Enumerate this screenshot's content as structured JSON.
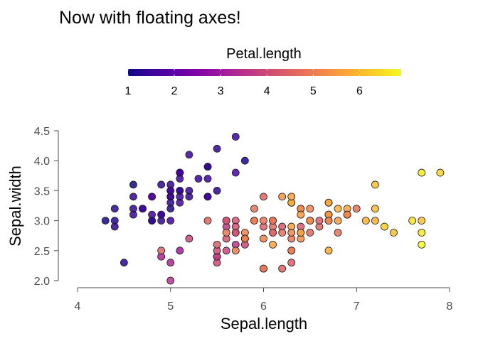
{
  "chart_data": {
    "type": "scatter",
    "title": "Now with floating axes!",
    "xlabel": "Sepal.length",
    "ylabel": "Sepal.width",
    "xlim": [
      4,
      8
    ],
    "ylim": [
      2.0,
      4.5
    ],
    "xticks": [
      "4",
      "5",
      "6",
      "7",
      "8"
    ],
    "yticks": [
      "2.0",
      "2.5",
      "3.0",
      "3.5",
      "4.0",
      "4.5"
    ],
    "grid": false,
    "legend": {
      "title": "Petal.length",
      "position": "top",
      "type": "colorbar",
      "range": [
        1,
        6.9
      ],
      "ticks": [
        "1",
        "2",
        "3",
        "4",
        "5",
        "6"
      ],
      "colormap": "plasma"
    },
    "colors": [
      "#0d0887",
      "#3e049c",
      "#6300a7",
      "#8707a6",
      "#a62098",
      "#c03a83",
      "#d5546e",
      "#e76f5a",
      "#f58c46",
      "#fdad32",
      "#fcd225",
      "#f0f921"
    ],
    "points": [
      {
        "x": 5.1,
        "y": 3.5,
        "c": 1.4
      },
      {
        "x": 4.9,
        "y": 3.0,
        "c": 1.4
      },
      {
        "x": 4.7,
        "y": 3.2,
        "c": 1.3
      },
      {
        "x": 4.6,
        "y": 3.1,
        "c": 1.5
      },
      {
        "x": 5.0,
        "y": 3.6,
        "c": 1.4
      },
      {
        "x": 5.4,
        "y": 3.9,
        "c": 1.7
      },
      {
        "x": 4.6,
        "y": 3.4,
        "c": 1.4
      },
      {
        "x": 5.0,
        "y": 3.4,
        "c": 1.5
      },
      {
        "x": 4.4,
        "y": 2.9,
        "c": 1.4
      },
      {
        "x": 4.9,
        "y": 3.1,
        "c": 1.5
      },
      {
        "x": 5.4,
        "y": 3.7,
        "c": 1.5
      },
      {
        "x": 4.8,
        "y": 3.4,
        "c": 1.6
      },
      {
        "x": 4.8,
        "y": 3.0,
        "c": 1.4
      },
      {
        "x": 4.3,
        "y": 3.0,
        "c": 1.1
      },
      {
        "x": 5.8,
        "y": 4.0,
        "c": 1.2
      },
      {
        "x": 5.7,
        "y": 4.4,
        "c": 1.5
      },
      {
        "x": 5.4,
        "y": 3.9,
        "c": 1.3
      },
      {
        "x": 5.1,
        "y": 3.5,
        "c": 1.4
      },
      {
        "x": 5.7,
        "y": 3.8,
        "c": 1.7
      },
      {
        "x": 5.1,
        "y": 3.8,
        "c": 1.5
      },
      {
        "x": 5.4,
        "y": 3.4,
        "c": 1.7
      },
      {
        "x": 5.1,
        "y": 3.7,
        "c": 1.5
      },
      {
        "x": 4.6,
        "y": 3.6,
        "c": 1.0
      },
      {
        "x": 5.1,
        "y": 3.3,
        "c": 1.7
      },
      {
        "x": 4.8,
        "y": 3.4,
        "c": 1.9
      },
      {
        "x": 5.0,
        "y": 3.0,
        "c": 1.6
      },
      {
        "x": 5.0,
        "y": 3.4,
        "c": 1.6
      },
      {
        "x": 5.2,
        "y": 3.5,
        "c": 1.5
      },
      {
        "x": 5.2,
        "y": 3.4,
        "c": 1.4
      },
      {
        "x": 4.7,
        "y": 3.2,
        "c": 1.6
      },
      {
        "x": 4.8,
        "y": 3.1,
        "c": 1.6
      },
      {
        "x": 5.4,
        "y": 3.4,
        "c": 1.5
      },
      {
        "x": 5.2,
        "y": 4.1,
        "c": 1.5
      },
      {
        "x": 5.5,
        "y": 4.2,
        "c": 1.4
      },
      {
        "x": 4.9,
        "y": 3.1,
        "c": 1.5
      },
      {
        "x": 5.0,
        "y": 3.2,
        "c": 1.2
      },
      {
        "x": 5.5,
        "y": 3.5,
        "c": 1.3
      },
      {
        "x": 4.9,
        "y": 3.6,
        "c": 1.4
      },
      {
        "x": 4.4,
        "y": 3.0,
        "c": 1.3
      },
      {
        "x": 5.1,
        "y": 3.4,
        "c": 1.5
      },
      {
        "x": 5.0,
        "y": 3.5,
        "c": 1.3
      },
      {
        "x": 4.5,
        "y": 2.3,
        "c": 1.3
      },
      {
        "x": 4.4,
        "y": 3.2,
        "c": 1.3
      },
      {
        "x": 5.0,
        "y": 3.5,
        "c": 1.6
      },
      {
        "x": 5.1,
        "y": 3.8,
        "c": 1.9
      },
      {
        "x": 4.8,
        "y": 3.0,
        "c": 1.4
      },
      {
        "x": 5.1,
        "y": 3.8,
        "c": 1.6
      },
      {
        "x": 4.6,
        "y": 3.2,
        "c": 1.4
      },
      {
        "x": 5.3,
        "y": 3.7,
        "c": 1.5
      },
      {
        "x": 5.0,
        "y": 3.3,
        "c": 1.4
      },
      {
        "x": 7.0,
        "y": 3.2,
        "c": 4.7
      },
      {
        "x": 6.4,
        "y": 3.2,
        "c": 4.5
      },
      {
        "x": 6.9,
        "y": 3.1,
        "c": 4.9
      },
      {
        "x": 5.5,
        "y": 2.3,
        "c": 4.0
      },
      {
        "x": 6.5,
        "y": 2.8,
        "c": 4.6
      },
      {
        "x": 5.7,
        "y": 2.8,
        "c": 4.5
      },
      {
        "x": 6.3,
        "y": 3.3,
        "c": 4.7
      },
      {
        "x": 4.9,
        "y": 2.4,
        "c": 3.3
      },
      {
        "x": 6.6,
        "y": 2.9,
        "c": 4.6
      },
      {
        "x": 5.2,
        "y": 2.7,
        "c": 3.9
      },
      {
        "x": 5.0,
        "y": 2.0,
        "c": 3.5
      },
      {
        "x": 5.9,
        "y": 3.0,
        "c": 4.2
      },
      {
        "x": 6.0,
        "y": 2.2,
        "c": 4.0
      },
      {
        "x": 6.1,
        "y": 2.9,
        "c": 4.7
      },
      {
        "x": 5.6,
        "y": 2.9,
        "c": 3.6
      },
      {
        "x": 6.7,
        "y": 3.1,
        "c": 4.4
      },
      {
        "x": 5.6,
        "y": 3.0,
        "c": 4.5
      },
      {
        "x": 5.8,
        "y": 2.7,
        "c": 4.1
      },
      {
        "x": 6.2,
        "y": 2.2,
        "c": 4.5
      },
      {
        "x": 5.6,
        "y": 2.5,
        "c": 3.9
      },
      {
        "x": 5.9,
        "y": 3.2,
        "c": 4.8
      },
      {
        "x": 6.1,
        "y": 2.8,
        "c": 4.0
      },
      {
        "x": 6.3,
        "y": 2.5,
        "c": 4.9
      },
      {
        "x": 6.1,
        "y": 2.8,
        "c": 4.7
      },
      {
        "x": 6.4,
        "y": 2.9,
        "c": 4.3
      },
      {
        "x": 6.6,
        "y": 3.0,
        "c": 4.4
      },
      {
        "x": 6.8,
        "y": 2.8,
        "c": 4.8
      },
      {
        "x": 6.7,
        "y": 3.0,
        "c": 5.0
      },
      {
        "x": 6.0,
        "y": 2.9,
        "c": 4.5
      },
      {
        "x": 5.7,
        "y": 2.6,
        "c": 3.5
      },
      {
        "x": 5.5,
        "y": 2.4,
        "c": 3.8
      },
      {
        "x": 5.5,
        "y": 2.4,
        "c": 3.7
      },
      {
        "x": 5.8,
        "y": 2.7,
        "c": 3.9
      },
      {
        "x": 6.0,
        "y": 2.7,
        "c": 5.1
      },
      {
        "x": 5.4,
        "y": 3.0,
        "c": 4.5
      },
      {
        "x": 6.0,
        "y": 3.4,
        "c": 4.5
      },
      {
        "x": 6.7,
        "y": 3.1,
        "c": 4.7
      },
      {
        "x": 6.3,
        "y": 2.3,
        "c": 4.4
      },
      {
        "x": 5.6,
        "y": 3.0,
        "c": 4.1
      },
      {
        "x": 5.5,
        "y": 2.5,
        "c": 4.0
      },
      {
        "x": 5.5,
        "y": 2.6,
        "c": 4.4
      },
      {
        "x": 6.1,
        "y": 3.0,
        "c": 4.6
      },
      {
        "x": 5.8,
        "y": 2.6,
        "c": 4.0
      },
      {
        "x": 5.0,
        "y": 2.3,
        "c": 3.3
      },
      {
        "x": 5.6,
        "y": 2.7,
        "c": 4.2
      },
      {
        "x": 5.7,
        "y": 3.0,
        "c": 4.2
      },
      {
        "x": 5.7,
        "y": 2.9,
        "c": 4.2
      },
      {
        "x": 6.2,
        "y": 2.9,
        "c": 4.3
      },
      {
        "x": 5.1,
        "y": 2.5,
        "c": 3.0
      },
      {
        "x": 5.7,
        "y": 2.8,
        "c": 4.1
      },
      {
        "x": 6.3,
        "y": 3.3,
        "c": 6.0
      },
      {
        "x": 5.8,
        "y": 2.7,
        "c": 5.1
      },
      {
        "x": 7.1,
        "y": 3.0,
        "c": 5.9
      },
      {
        "x": 6.3,
        "y": 2.9,
        "c": 5.6
      },
      {
        "x": 6.5,
        "y": 3.0,
        "c": 5.8
      },
      {
        "x": 7.6,
        "y": 3.0,
        "c": 6.6
      },
      {
        "x": 4.9,
        "y": 2.5,
        "c": 4.5
      },
      {
        "x": 7.3,
        "y": 2.9,
        "c": 6.3
      },
      {
        "x": 6.7,
        "y": 2.5,
        "c": 5.8
      },
      {
        "x": 7.2,
        "y": 3.6,
        "c": 6.1
      },
      {
        "x": 6.5,
        "y": 3.2,
        "c": 5.1
      },
      {
        "x": 6.4,
        "y": 2.7,
        "c": 5.3
      },
      {
        "x": 6.8,
        "y": 3.0,
        "c": 5.5
      },
      {
        "x": 5.7,
        "y": 2.5,
        "c": 5.0
      },
      {
        "x": 5.8,
        "y": 2.8,
        "c": 5.1
      },
      {
        "x": 6.4,
        "y": 3.2,
        "c": 5.3
      },
      {
        "x": 6.5,
        "y": 3.0,
        "c": 5.5
      },
      {
        "x": 7.7,
        "y": 3.8,
        "c": 6.7
      },
      {
        "x": 7.7,
        "y": 2.6,
        "c": 6.9
      },
      {
        "x": 6.0,
        "y": 2.2,
        "c": 5.0
      },
      {
        "x": 6.9,
        "y": 3.2,
        "c": 5.7
      },
      {
        "x": 5.6,
        "y": 2.8,
        "c": 4.9
      },
      {
        "x": 7.7,
        "y": 2.8,
        "c": 6.7
      },
      {
        "x": 6.3,
        "y": 2.7,
        "c": 4.9
      },
      {
        "x": 6.7,
        "y": 3.3,
        "c": 5.7
      },
      {
        "x": 7.2,
        "y": 3.2,
        "c": 6.0
      },
      {
        "x": 6.2,
        "y": 2.8,
        "c": 4.8
      },
      {
        "x": 6.1,
        "y": 3.0,
        "c": 4.9
      },
      {
        "x": 6.4,
        "y": 2.8,
        "c": 5.6
      },
      {
        "x": 7.2,
        "y": 3.0,
        "c": 5.8
      },
      {
        "x": 7.4,
        "y": 2.8,
        "c": 6.1
      },
      {
        "x": 7.9,
        "y": 3.8,
        "c": 6.4
      },
      {
        "x": 6.4,
        "y": 2.8,
        "c": 5.6
      },
      {
        "x": 6.3,
        "y": 2.8,
        "c": 5.1
      },
      {
        "x": 6.1,
        "y": 2.6,
        "c": 5.6
      },
      {
        "x": 7.7,
        "y": 3.0,
        "c": 6.1
      },
      {
        "x": 6.3,
        "y": 3.4,
        "c": 5.6
      },
      {
        "x": 6.4,
        "y": 3.1,
        "c": 5.5
      },
      {
        "x": 6.0,
        "y": 3.0,
        "c": 4.8
      },
      {
        "x": 6.9,
        "y": 3.1,
        "c": 5.4
      },
      {
        "x": 6.7,
        "y": 3.1,
        "c": 5.6
      },
      {
        "x": 6.9,
        "y": 3.1,
        "c": 5.1
      },
      {
        "x": 5.8,
        "y": 2.7,
        "c": 5.1
      },
      {
        "x": 6.8,
        "y": 3.2,
        "c": 5.9
      },
      {
        "x": 6.7,
        "y": 3.3,
        "c": 5.7
      },
      {
        "x": 6.7,
        "y": 3.0,
        "c": 5.2
      },
      {
        "x": 6.3,
        "y": 2.5,
        "c": 5.0
      },
      {
        "x": 6.5,
        "y": 3.0,
        "c": 5.2
      },
      {
        "x": 6.2,
        "y": 3.4,
        "c": 5.4
      },
      {
        "x": 5.9,
        "y": 3.0,
        "c": 5.1
      }
    ]
  }
}
